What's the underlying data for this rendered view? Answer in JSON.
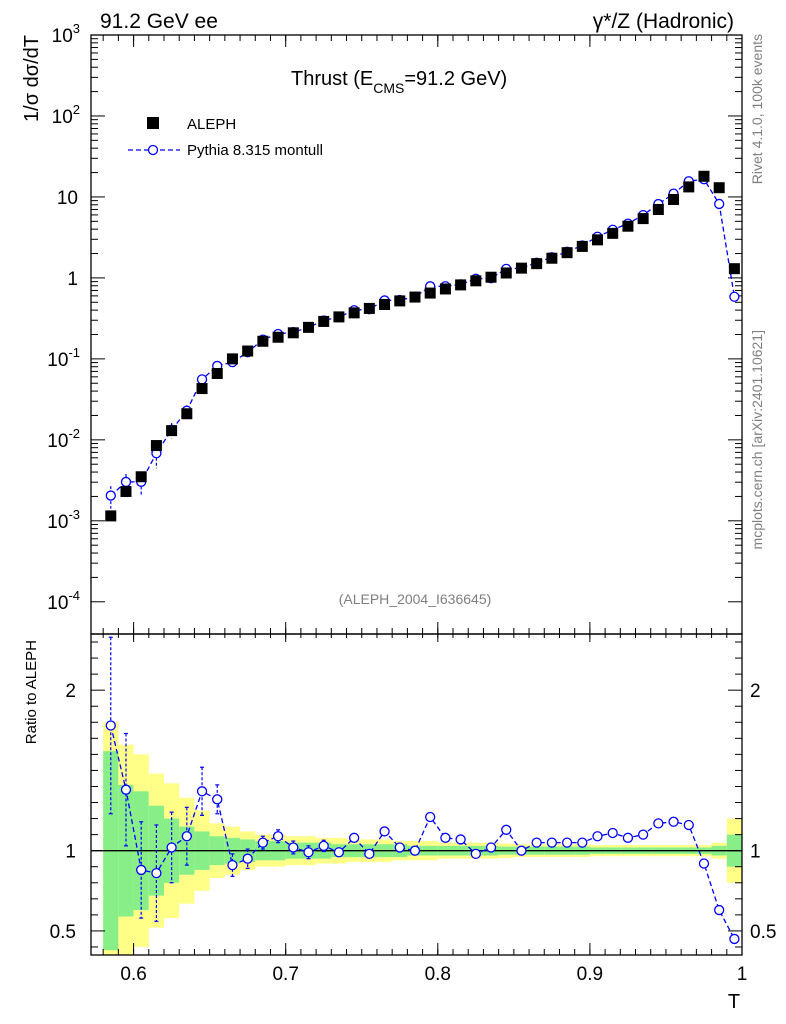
{
  "header": {
    "left": "91.2 GeV ee",
    "right_prefix": "γ*/Z",
    "right_suffix": " (Hadronic)"
  },
  "side_labels": {
    "rivet": "Rivet 4.1.0,  100k events",
    "mcplots": "mcplots.cern.ch [arXiv:2401.10621]"
  },
  "chart_data": {
    "type": "scatter",
    "title_main": "Thrust (E",
    "title_sub": "CMS",
    "title_tail": "=91.2 GeV)",
    "analysis_id": "(ALEPH_2004_I636645)",
    "xlabel": "T",
    "ylabel": "1/σ  dσ/dT",
    "ratio_ylabel": "Ratio to ALEPH",
    "xlim": [
      0.572,
      1.0
    ],
    "ylim": [
      4e-05,
      1000
    ],
    "ratio_ylim": [
      0.35,
      2.35
    ],
    "x_ticks": [
      "0.6",
      "0.7",
      "0.8",
      "0.9",
      "1"
    ],
    "x_tick_values": [
      0.6,
      0.7,
      0.8,
      0.9,
      1.0
    ],
    "y_ticks": [
      {
        "base": "10",
        "exp": "-4",
        "value": 0.0001
      },
      {
        "base": "10",
        "exp": "-3",
        "value": 0.001
      },
      {
        "base": "10",
        "exp": "-2",
        "value": 0.01
      },
      {
        "base": "10",
        "exp": "-1",
        "value": 0.1
      },
      {
        "base": "1",
        "exp": "",
        "value": 1
      },
      {
        "base": "10",
        "exp": "",
        "value": 10
      },
      {
        "base": "10",
        "exp": "2",
        "value": 100
      },
      {
        "base": "10",
        "exp": "3",
        "value": 1000
      }
    ],
    "ratio_ticks": [
      "0.5",
      "1",
      "2"
    ],
    "ratio_tick_values": [
      0.5,
      1,
      2
    ],
    "series": [
      {
        "name": "ALEPH",
        "color": "#000000",
        "x": [
          0.585,
          0.595,
          0.605,
          0.615,
          0.625,
          0.635,
          0.645,
          0.655,
          0.665,
          0.675,
          0.685,
          0.695,
          0.705,
          0.715,
          0.725,
          0.735,
          0.745,
          0.755,
          0.765,
          0.775,
          0.785,
          0.795,
          0.805,
          0.815,
          0.825,
          0.835,
          0.845,
          0.855,
          0.865,
          0.875,
          0.885,
          0.895,
          0.905,
          0.915,
          0.925,
          0.935,
          0.945,
          0.955,
          0.965,
          0.975,
          0.985,
          0.995
        ],
        "values": [
          0.00115,
          0.0023,
          0.0035,
          0.0085,
          0.013,
          0.021,
          0.043,
          0.066,
          0.1,
          0.125,
          0.165,
          0.185,
          0.21,
          0.245,
          0.29,
          0.33,
          0.37,
          0.42,
          0.47,
          0.52,
          0.58,
          0.65,
          0.73,
          0.82,
          0.92,
          1.02,
          1.15,
          1.32,
          1.5,
          1.75,
          2.05,
          2.45,
          2.95,
          3.55,
          4.35,
          5.4,
          7.0,
          9.3,
          13.3,
          18.0,
          13.0,
          1.3
        ]
      },
      {
        "name": "Pythia 8.315 montull",
        "color": "#0000ff",
        "x": [
          0.585,
          0.595,
          0.605,
          0.615,
          0.625,
          0.635,
          0.645,
          0.655,
          0.665,
          0.675,
          0.685,
          0.695,
          0.705,
          0.715,
          0.725,
          0.735,
          0.745,
          0.755,
          0.765,
          0.775,
          0.785,
          0.795,
          0.805,
          0.815,
          0.825,
          0.835,
          0.845,
          0.855,
          0.865,
          0.875,
          0.885,
          0.895,
          0.905,
          0.915,
          0.925,
          0.935,
          0.945,
          0.955,
          0.965,
          0.975,
          0.985,
          0.995
        ],
        "values": [
          0.00205,
          0.00302,
          0.00303,
          0.00683,
          0.0133,
          0.0229,
          0.0558,
          0.0818,
          0.0912,
          0.121,
          0.173,
          0.203,
          0.214,
          0.244,
          0.298,
          0.328,
          0.399,
          0.411,
          0.527,
          0.534,
          0.58,
          0.787,
          0.788,
          0.83,
          0.974,
          0.991,
          1.294,
          1.32,
          1.539,
          1.796,
          2.104,
          2.515,
          3.221,
          3.931,
          4.686,
          5.966,
          8.166,
          10.976,
          15.622,
          16.56,
          8.19,
          0.585
        ],
        "ratio": [
          1.78,
          1.38,
          0.88,
          0.86,
          1.02,
          1.09,
          1.37,
          1.32,
          0.91,
          0.95,
          1.05,
          1.09,
          1.02,
          0.99,
          1.03,
          0.99,
          1.08,
          0.98,
          1.12,
          1.02,
          1.0,
          1.21,
          1.08,
          1.07,
          0.98,
          1.02,
          1.13,
          1.0,
          1.05,
          1.05,
          1.05,
          1.05,
          1.09,
          1.11,
          1.08,
          1.1,
          1.17,
          1.18,
          1.16,
          0.92,
          0.63,
          0.45
        ],
        "ratio_err": [
          0.55,
          0.35,
          0.3,
          0.3,
          0.22,
          0.18,
          0.15,
          0.09,
          0.07,
          0.06,
          0.04,
          0.04,
          0.04,
          0.04,
          0.035,
          0.03,
          0.03,
          0.03,
          0.03,
          0.025,
          0.02,
          0.02,
          0.02,
          0.02,
          0.02,
          0.015,
          0.015,
          0.015,
          0.015,
          0.015,
          0.015,
          0.015,
          0.015,
          0.01,
          0.01,
          0.01,
          0.01,
          0.01,
          0.01,
          0.01,
          0.01,
          0.02
        ]
      }
    ],
    "bands": {
      "green": [
        0.62,
        0.41,
        0.37,
        0.28,
        0.2,
        0.15,
        0.12,
        0.09,
        0.08,
        0.07,
        0.06,
        0.06,
        0.05,
        0.05,
        0.05,
        0.04,
        0.04,
        0.04,
        0.04,
        0.04,
        0.03,
        0.03,
        0.03,
        0.03,
        0.03,
        0.03,
        0.025,
        0.025,
        0.025,
        0.025,
        0.025,
        0.025,
        0.02,
        0.02,
        0.02,
        0.02,
        0.02,
        0.02,
        0.02,
        0.02,
        0.03,
        0.1
      ],
      "yellow": [
        0.8,
        0.66,
        0.6,
        0.48,
        0.42,
        0.33,
        0.25,
        0.17,
        0.15,
        0.12,
        0.1,
        0.1,
        0.09,
        0.09,
        0.08,
        0.08,
        0.07,
        0.07,
        0.07,
        0.06,
        0.06,
        0.06,
        0.05,
        0.05,
        0.05,
        0.05,
        0.045,
        0.04,
        0.04,
        0.04,
        0.04,
        0.04,
        0.035,
        0.035,
        0.035,
        0.035,
        0.035,
        0.035,
        0.035,
        0.035,
        0.05,
        0.2
      ]
    },
    "legend_position": "top-left"
  }
}
